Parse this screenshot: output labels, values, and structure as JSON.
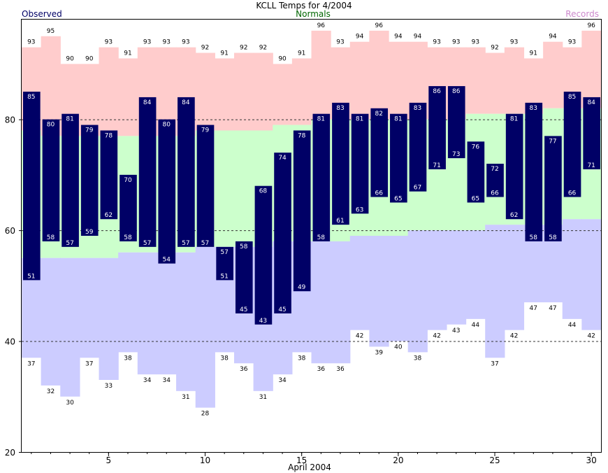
{
  "chart_data": {
    "type": "bar",
    "title": "KCLL Temps for 4/2004",
    "xlabel": "April 2004",
    "ylabel": "",
    "legend": {
      "observed": "Observed",
      "normals": "Normals",
      "records": "Records"
    },
    "colors": {
      "observed": "#000066",
      "normal_band": "#ccffcc",
      "record_high_band": "#ffcccc",
      "record_low_band": "#ccccff",
      "observed_label": "#000066",
      "normals_label": "#006600",
      "records_label": "#cc88cc",
      "bar_text": "#ffffff"
    },
    "ylim": [
      20,
      98
    ],
    "yticks": [
      20,
      40,
      60,
      80
    ],
    "xticks": [
      5,
      10,
      15,
      20,
      25,
      30
    ],
    "gridlines": [
      40,
      60,
      80
    ],
    "days": [
      1,
      2,
      3,
      4,
      5,
      6,
      7,
      8,
      9,
      10,
      11,
      12,
      13,
      14,
      15,
      16,
      17,
      18,
      19,
      20,
      21,
      22,
      23,
      24,
      25,
      26,
      27,
      28,
      29,
      30
    ],
    "series": [
      {
        "name": "Observed",
        "key": "obs_high",
        "values": [
          85,
          80,
          81,
          79,
          78,
          70,
          84,
          80,
          84,
          79,
          57,
          58,
          68,
          74,
          78,
          81,
          83,
          81,
          82,
          81,
          83,
          86,
          86,
          76,
          72,
          81,
          83,
          77,
          85,
          84
        ]
      },
      {
        "name": "Observed",
        "key": "obs_low",
        "values": [
          51,
          58,
          57,
          59,
          62,
          58,
          57,
          54,
          57,
          57,
          51,
          45,
          43,
          45,
          49,
          58,
          61,
          63,
          66,
          65,
          67,
          71,
          73,
          65,
          66,
          62,
          58,
          58,
          66,
          71
        ]
      },
      {
        "name": "Records",
        "key": "record_high",
        "values": [
          93,
          95,
          90,
          90,
          93,
          91,
          93,
          93,
          93,
          92,
          91,
          92,
          92,
          90,
          91,
          96,
          93,
          94,
          96,
          94,
          94,
          93,
          93,
          93,
          92,
          93,
          91,
          94,
          93,
          96
        ]
      },
      {
        "name": "Records",
        "key": "record_low",
        "values": [
          37,
          32,
          30,
          37,
          33,
          38,
          34,
          34,
          31,
          28,
          38,
          36,
          31,
          34,
          38,
          36,
          36,
          42,
          39,
          40,
          38,
          42,
          43,
          44,
          37,
          42,
          47,
          47,
          44,
          42
        ]
      },
      {
        "name": "Normals",
        "key": "normal_high",
        "values": [
          78,
          77,
          77,
          77,
          77,
          77,
          77,
          77,
          77,
          78,
          78,
          78,
          78,
          79,
          79,
          80,
          80,
          80,
          80,
          80,
          80,
          80,
          80,
          81,
          81,
          81,
          81,
          82,
          82,
          82
        ]
      },
      {
        "name": "Normals",
        "key": "normal_low",
        "values": [
          55,
          55,
          55,
          55,
          55,
          56,
          56,
          56,
          56,
          57,
          57,
          57,
          57,
          58,
          58,
          58,
          58,
          59,
          59,
          59,
          60,
          60,
          60,
          60,
          61,
          61,
          61,
          61,
          62,
          62
        ]
      }
    ]
  }
}
